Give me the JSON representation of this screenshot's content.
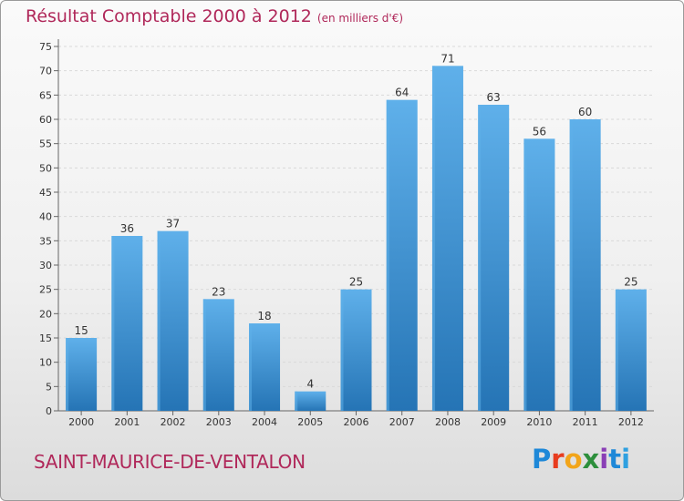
{
  "header": {
    "title": "Résultat Comptable 2000 à 2012",
    "subtitle": "(en milliers d'€)"
  },
  "footer": {
    "commune": "SAINT-MAURICE-DE-VENTALON",
    "logo": {
      "text": "Proxiti",
      "colors": [
        "#1e88d8",
        "#e83c1e",
        "#f2a51a",
        "#2d8f3c",
        "#8a3fb6",
        "#1e88d8",
        "#2fa0e0"
      ]
    }
  },
  "colors": {
    "bar": "#3a95d7",
    "bar_light": "#5fb0ea",
    "bar_dark": "#2574b5",
    "title": "#b0285a"
  },
  "chart_data": {
    "type": "bar",
    "categories": [
      "2000",
      "2001",
      "2002",
      "2003",
      "2004",
      "2005",
      "2006",
      "2007",
      "2008",
      "2009",
      "2010",
      "2011",
      "2012"
    ],
    "values": [
      15,
      36,
      37,
      23,
      18,
      4,
      25,
      64,
      71,
      63,
      56,
      60,
      25
    ],
    "title": "Résultat Comptable 2000 à 2012",
    "ylim": [
      0,
      75
    ],
    "yticks": [
      0,
      5,
      10,
      15,
      20,
      25,
      30,
      35,
      40,
      45,
      50,
      55,
      60,
      65,
      70,
      75
    ],
    "grid": true
  }
}
